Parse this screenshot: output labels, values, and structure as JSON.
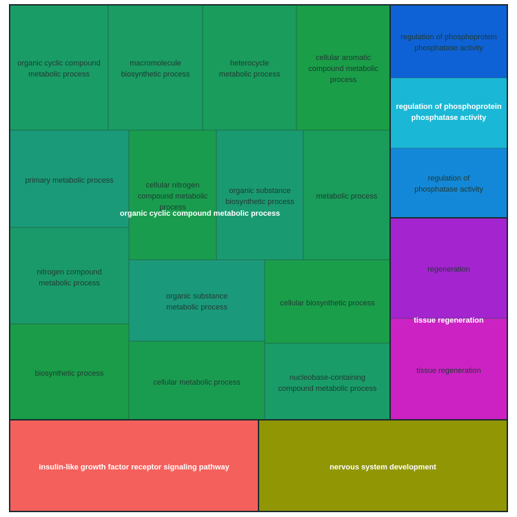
{
  "chart_data": {
    "type": "treemap",
    "groups": [
      {
        "label": "organic cyclic compound metabolic process",
        "color": "#1a9c5a",
        "tiles": [
          {
            "label": [
              "organic cyclic compound",
              "metabolic process"
            ],
            "color": "#1a9c66"
          },
          {
            "label": [
              "macromolecule",
              "biosynthetic process"
            ],
            "color": "#1a9c62"
          },
          {
            "label": [
              "heterocycle",
              "metabolic process"
            ],
            "color": "#1a9c5c"
          },
          {
            "label": [
              "cellular aromatic",
              "compound metabolic",
              "process"
            ],
            "color": "#1a9e48"
          },
          {
            "label": [
              "primary metabolic process"
            ],
            "color": "#1a9a78"
          },
          {
            "label": [
              "cellular nitrogen",
              "compound metabolic",
              "process"
            ],
            "color": "#1a9c4e"
          },
          {
            "label": [
              "organic substance",
              "biosynthetic process"
            ],
            "color": "#1a9a70"
          },
          {
            "label": [
              "metabolic process"
            ],
            "color": "#1a9c5a"
          },
          {
            "label": [
              "nitrogen compound",
              "metabolic process"
            ],
            "color": "#1a9a6a"
          },
          {
            "label": [
              "organic substance",
              "metabolic process"
            ],
            "color": "#1a9a7a"
          },
          {
            "label": [
              "cellular biosynthetic process"
            ],
            "color": "#1a9e4a"
          },
          {
            "label": [
              "biosynthetic process"
            ],
            "color": "#1a9c48"
          },
          {
            "label": [
              "cellular metabolic process"
            ],
            "color": "#1a9c50"
          },
          {
            "label": [
              "nucleobase-containing",
              "compound metabolic process"
            ],
            "color": "#1a9c68"
          }
        ]
      },
      {
        "label": "regulation of phosphoprotein phosphatase activity",
        "color": "#1ab8d6",
        "tiles": [
          {
            "label": [
              "regulation of phosphoprotein",
              "phosphatase activity"
            ],
            "color": "#0e62d6"
          },
          {
            "label": [
              "regulation of",
              "phosphatase activity"
            ],
            "color": "#1488d8"
          }
        ]
      },
      {
        "label": "tissue regeneration",
        "color": "#cc22c4",
        "tiles": [
          {
            "label": [
              "regeneration"
            ],
            "color": "#a424d0"
          },
          {
            "label": [
              "tissue regeneration"
            ],
            "color": "#cc22c4"
          }
        ]
      },
      {
        "label": "insulin-like growth factor receptor signaling pathway",
        "color": "#f4605c",
        "tiles": []
      },
      {
        "label": "nervous system development",
        "color": "#919604",
        "tiles": []
      }
    ]
  }
}
